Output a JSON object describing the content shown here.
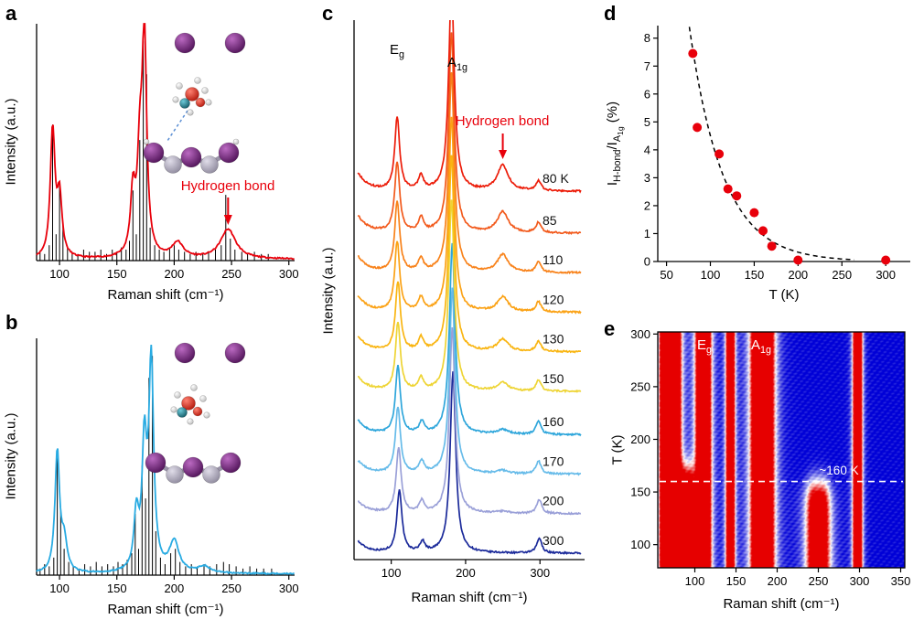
{
  "chart_data": [
    {
      "panel_label": "a",
      "type": "line",
      "xlabel": "Raman shift (cm⁻¹)",
      "ylabel": "Intensity (a.u.)",
      "xlim": [
        80,
        305
      ],
      "xticks": [
        100,
        150,
        200,
        250,
        300
      ],
      "curve_color": "#e8000b",
      "stick_color": "#000000",
      "annotation": {
        "text": "Hydrogen bond",
        "x": 247,
        "color": "#e8000b"
      },
      "inset_icon": "crystal-structure-with-hydrogen-bond-illustration",
      "curve_peaks": [
        [
          94,
          0.58,
          2.4
        ],
        [
          100,
          0.27,
          2.6
        ],
        [
          164,
          0.28,
          2.5
        ],
        [
          170,
          0.4,
          2.5
        ],
        [
          174,
          1.0,
          2.4
        ],
        [
          203,
          0.07,
          6
        ],
        [
          247,
          0.135,
          8
        ]
      ],
      "sticks": [
        [
          83,
          0.04
        ],
        [
          87,
          0.03
        ],
        [
          91,
          0.07
        ],
        [
          94,
          0.62
        ],
        [
          97,
          0.12
        ],
        [
          100,
          0.34
        ],
        [
          103,
          0.17
        ],
        [
          107,
          0.06
        ],
        [
          111,
          0.04
        ],
        [
          116,
          0.03
        ],
        [
          121,
          0.05
        ],
        [
          126,
          0.04
        ],
        [
          131,
          0.04
        ],
        [
          136,
          0.05
        ],
        [
          141,
          0.03
        ],
        [
          146,
          0.05
        ],
        [
          150,
          0.04
        ],
        [
          154,
          0.06
        ],
        [
          158,
          0.05
        ],
        [
          161,
          0.09
        ],
        [
          164,
          0.32
        ],
        [
          167,
          0.12
        ],
        [
          170,
          0.55
        ],
        [
          173,
          1.0
        ],
        [
          176,
          0.85
        ],
        [
          179,
          0.15
        ],
        [
          183,
          0.07
        ],
        [
          187,
          0.05
        ],
        [
          191,
          0.04
        ],
        [
          196,
          0.06
        ],
        [
          200,
          0.07
        ],
        [
          204,
          0.05
        ],
        [
          209,
          0.04
        ],
        [
          214,
          0.03
        ],
        [
          219,
          0.04
        ],
        [
          225,
          0.03
        ],
        [
          230,
          0.04
        ],
        [
          236,
          0.05
        ],
        [
          241,
          0.07
        ],
        [
          245,
          0.3
        ],
        [
          249,
          0.1
        ],
        [
          253,
          0.05
        ],
        [
          259,
          0.04
        ],
        [
          264,
          0.03
        ],
        [
          270,
          0.04
        ],
        [
          276,
          0.03
        ],
        [
          282,
          0.03
        ]
      ]
    },
    {
      "panel_label": "b",
      "type": "line",
      "xlabel": "Raman shift (cm⁻¹)",
      "ylabel": "Intensity (a.u.)",
      "xlim": [
        80,
        305
      ],
      "xticks": [
        100,
        150,
        200,
        250,
        300
      ],
      "curve_color": "#29abe2",
      "stick_color": "#000000",
      "inset_icon": "crystal-structure-without-hydrogen-bond-illustration",
      "curve_peaks": [
        [
          98,
          0.55,
          2.4
        ],
        [
          104,
          0.14,
          3
        ],
        [
          167,
          0.25,
          2.5
        ],
        [
          174,
          0.55,
          2.4
        ],
        [
          180,
          0.95,
          2.5
        ],
        [
          200,
          0.14,
          5
        ],
        [
          226,
          0.03,
          6
        ]
      ],
      "sticks": [
        [
          83,
          0.03
        ],
        [
          87,
          0.05
        ],
        [
          91,
          0.04
        ],
        [
          95,
          0.08
        ],
        [
          98,
          0.55
        ],
        [
          101,
          0.3
        ],
        [
          104,
          0.12
        ],
        [
          108,
          0.06
        ],
        [
          112,
          0.04
        ],
        [
          117,
          0.03
        ],
        [
          122,
          0.05
        ],
        [
          127,
          0.04
        ],
        [
          132,
          0.06
        ],
        [
          137,
          0.04
        ],
        [
          142,
          0.05
        ],
        [
          147,
          0.04
        ],
        [
          151,
          0.06
        ],
        [
          155,
          0.05
        ],
        [
          159,
          0.07
        ],
        [
          163,
          0.1
        ],
        [
          166,
          0.28
        ],
        [
          169,
          0.12
        ],
        [
          172,
          0.5
        ],
        [
          175,
          0.35
        ],
        [
          178,
          0.9
        ],
        [
          181,
          1.0
        ],
        [
          184,
          0.2
        ],
        [
          188,
          0.08
        ],
        [
          192,
          0.05
        ],
        [
          197,
          0.1
        ],
        [
          201,
          0.12
        ],
        [
          205,
          0.06
        ],
        [
          210,
          0.04
        ],
        [
          215,
          0.05
        ],
        [
          220,
          0.04
        ],
        [
          226,
          0.05
        ],
        [
          231,
          0.04
        ],
        [
          237,
          0.05
        ],
        [
          243,
          0.06
        ],
        [
          248,
          0.05
        ],
        [
          254,
          0.04
        ],
        [
          260,
          0.03
        ],
        [
          266,
          0.04
        ],
        [
          272,
          0.03
        ],
        [
          278,
          0.03
        ],
        [
          285,
          0.03
        ]
      ]
    },
    {
      "panel_label": "c",
      "type": "line",
      "xlabel": "Raman shift (cm⁻¹)",
      "ylabel": "Intensity (a.u.)",
      "xlim": [
        50,
        360
      ],
      "xticks": [
        100,
        200,
        300
      ],
      "ylim": [
        0,
        11.6
      ],
      "annotation": {
        "text": "Hydrogen bond",
        "x": 250,
        "color": "#e8000b"
      },
      "peak_labels": [
        {
          "base": "E",
          "sub": "g"
        },
        {
          "base": "A",
          "sub": "1g"
        }
      ],
      "series": [
        {
          "label": "80 K",
          "color": "#ec1c09",
          "offset": 7.9,
          "peaks": [
            [
              48,
              0.5,
              14
            ],
            [
              108,
              1.55,
              4
            ],
            [
              140,
              0.3,
              4
            ],
            [
              181,
              4.4,
              4.5
            ],
            [
              250,
              0.55,
              9
            ],
            [
              298,
              0.22,
              4
            ]
          ]
        },
        {
          "label": "85",
          "color": "#f2591b",
          "offset": 7.0,
          "peaks": [
            [
              48,
              0.48,
              14
            ],
            [
              108,
              1.5,
              4
            ],
            [
              140,
              0.3,
              4
            ],
            [
              181,
              4.3,
              4.5
            ],
            [
              250,
              0.45,
              9
            ],
            [
              298,
              0.22,
              4
            ]
          ]
        },
        {
          "label": "110",
          "color": "#f8821a",
          "offset": 6.15,
          "peaks": [
            [
              48,
              0.45,
              14
            ],
            [
              108,
              1.5,
              4
            ],
            [
              140,
              0.28,
              4
            ],
            [
              181,
              4.3,
              4.5
            ],
            [
              250,
              0.38,
              9
            ],
            [
              298,
              0.22,
              4
            ]
          ]
        },
        {
          "label": "120",
          "color": "#fba215",
          "offset": 5.3,
          "peaks": [
            [
              48,
              0.45,
              14
            ],
            [
              108,
              1.5,
              4
            ],
            [
              140,
              0.28,
              4
            ],
            [
              181,
              4.2,
              4.5
            ],
            [
              250,
              0.32,
              9
            ],
            [
              298,
              0.22,
              4
            ]
          ]
        },
        {
          "label": "130",
          "color": "#f9b511",
          "offset": 4.45,
          "peaks": [
            [
              48,
              0.42,
              14
            ],
            [
              109,
              1.48,
              4
            ],
            [
              140,
              0.27,
              4
            ],
            [
              181,
              4.2,
              4.5
            ],
            [
              250,
              0.26,
              9
            ],
            [
              298,
              0.22,
              4
            ]
          ]
        },
        {
          "label": "150",
          "color": "#eed434",
          "offset": 3.6,
          "peaks": [
            [
              48,
              0.4,
              14
            ],
            [
              109,
              1.45,
              4
            ],
            [
              140,
              0.26,
              4
            ],
            [
              181,
              4.1,
              4.5
            ],
            [
              250,
              0.18,
              9
            ],
            [
              298,
              0.24,
              4
            ]
          ]
        },
        {
          "label": "160",
          "color": "#2ea6db",
          "offset": 2.67,
          "peaks": [
            [
              48,
              0.38,
              14
            ],
            [
              109,
              1.45,
              4
            ],
            [
              141,
              0.25,
              4
            ],
            [
              182,
              4.1,
              4.5
            ],
            [
              250,
              0.1,
              9
            ],
            [
              298,
              0.28,
              4
            ]
          ]
        },
        {
          "label": "170",
          "color": "#66bbe9",
          "offset": 1.82,
          "peaks": [
            [
              48,
              0.36,
              14
            ],
            [
              109,
              1.42,
              4
            ],
            [
              141,
              0.25,
              4
            ],
            [
              182,
              4.0,
              4.5
            ],
            [
              250,
              0.07,
              9
            ],
            [
              298,
              0.28,
              4
            ]
          ]
        },
        {
          "label": "200",
          "color": "#9aa0d8",
          "offset": 0.97,
          "peaks": [
            [
              48,
              0.34,
              14
            ],
            [
              110,
              1.4,
              4
            ],
            [
              141,
              0.24,
              4
            ],
            [
              182,
              4.0,
              4.5
            ],
            [
              250,
              0.04,
              9
            ],
            [
              299,
              0.3,
              4
            ]
          ]
        },
        {
          "label": "300",
          "color": "#1b2a9a",
          "offset": 0.12,
          "peaks": [
            [
              48,
              0.32,
              14
            ],
            [
              111,
              1.35,
              4
            ],
            [
              142,
              0.22,
              4
            ],
            [
              183,
              3.9,
              4.5
            ],
            [
              299,
              0.32,
              4
            ]
          ]
        }
      ]
    },
    {
      "panel_label": "d",
      "type": "scatter",
      "xlabel": "T (K)",
      "ylabel_parts": {
        "i1": "I",
        "sub1": "H-bond",
        "i2": "/I",
        "sub2": "A",
        "sub2sub": "1g",
        "suffix": " (%)"
      },
      "xlim": [
        40,
        328
      ],
      "xticks": [
        50,
        100,
        150,
        200,
        250,
        300
      ],
      "ylim": [
        0,
        8.45
      ],
      "yticks": [
        0,
        1,
        2,
        3,
        4,
        5,
        6,
        7,
        8
      ],
      "point_color": "#e8000b",
      "points": [
        [
          80,
          7.45
        ],
        [
          85,
          4.8
        ],
        [
          110,
          3.85
        ],
        [
          120,
          2.6
        ],
        [
          130,
          2.35
        ],
        [
          150,
          1.75
        ],
        [
          160,
          1.1
        ],
        [
          170,
          0.55
        ],
        [
          200,
          0.05
        ],
        [
          300,
          0.05
        ]
      ],
      "fit": {
        "type": "exponential",
        "A": 60.5,
        "tau": 38.5,
        "x_start": 74,
        "x_end": 265,
        "style": "dashed"
      }
    },
    {
      "panel_label": "e",
      "type": "heatmap",
      "xlabel": "Raman shift (cm⁻¹)",
      "ylabel": "T (K)",
      "xlim": [
        55,
        355
      ],
      "xticks": [
        100,
        150,
        200,
        250,
        300,
        350
      ],
      "tlim": [
        78,
        302
      ],
      "yticks": [
        100,
        150,
        200,
        250,
        300
      ],
      "colormap": {
        "low": "#0000d7",
        "mid": "#ffffff",
        "high": "#e60000"
      },
      "dashed_line": {
        "T": 160,
        "label": "~160 K",
        "color": "#ffffff"
      },
      "peak_labels": [
        {
          "base": "E",
          "sub": "g",
          "x": 112
        },
        {
          "base": "A",
          "sub": "1g",
          "x": 178
        }
      ],
      "bands": [
        {
          "c": 62,
          "w": 5,
          "s": 1.6
        },
        {
          "c": 74,
          "w": 8,
          "s": 2.0
        },
        {
          "c": 90,
          "w": 9,
          "s": 1.7,
          "tmax": 168
        },
        {
          "c": 110,
          "w": 8,
          "s": 2.3
        },
        {
          "c": 143,
          "w": 5,
          "s": 1.6
        },
        {
          "c": 182,
          "w": 11,
          "s": 3.0
        },
        {
          "c": 250,
          "w": 13,
          "s": 1.5,
          "tmax": 155
        },
        {
          "c": 298,
          "w": 5,
          "s": 1.9
        }
      ]
    }
  ]
}
